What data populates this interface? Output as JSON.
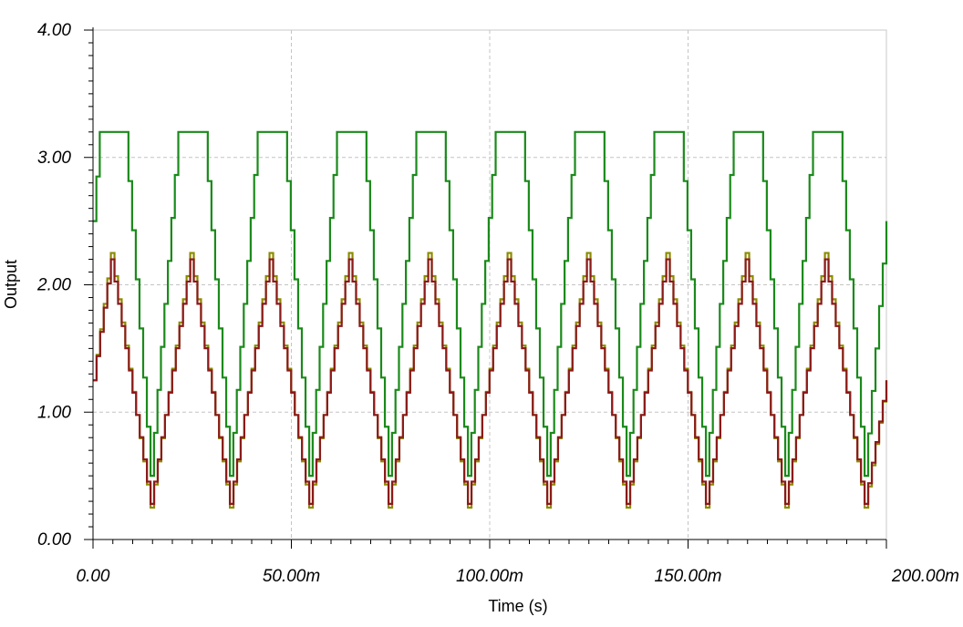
{
  "chart_data": {
    "type": "line",
    "title": "",
    "xlabel": "Time (s)",
    "ylabel": "Output",
    "xlim": [
      0,
      0.2
    ],
    "ylim": [
      0,
      4
    ],
    "grid": true,
    "x_ticks": [
      {
        "value": 0,
        "label": "0.00"
      },
      {
        "value": 0.05,
        "label": "50.00m"
      },
      {
        "value": 0.1,
        "label": "100.00m"
      },
      {
        "value": 0.15,
        "label": "150.00m"
      },
      {
        "value": 0.2,
        "label": "200.00m"
      }
    ],
    "y_ticks": [
      {
        "value": 0,
        "label": "0.00"
      },
      {
        "value": 1,
        "label": "1.00"
      },
      {
        "value": 2,
        "label": "2.00"
      },
      {
        "value": 3,
        "label": "3.00"
      },
      {
        "value": 4,
        "label": "4.00"
      }
    ],
    "series": [
      {
        "color": "#1a8a1a",
        "points": [
          [
            0,
            2.5
          ],
          [
            0.0017,
            3.2
          ],
          [
            0.008,
            3.2
          ],
          [
            0.0145,
            0.5
          ],
          [
            0.0215,
            3.2
          ],
          [
            0.028,
            3.2
          ],
          [
            0.0345,
            0.5
          ],
          [
            0.0415,
            3.2
          ],
          [
            0.048,
            3.2
          ],
          [
            0.0545,
            0.5
          ],
          [
            0.0615,
            3.2
          ],
          [
            0.068,
            3.2
          ],
          [
            0.0745,
            0.5
          ],
          [
            0.0815,
            3.2
          ],
          [
            0.088,
            3.2
          ],
          [
            0.0945,
            0.5
          ],
          [
            0.1015,
            3.2
          ],
          [
            0.108,
            3.2
          ],
          [
            0.1145,
            0.5
          ],
          [
            0.1215,
            3.2
          ],
          [
            0.128,
            3.2
          ],
          [
            0.1345,
            0.5
          ],
          [
            0.1415,
            3.2
          ],
          [
            0.148,
            3.2
          ],
          [
            0.1545,
            0.5
          ],
          [
            0.1615,
            3.2
          ],
          [
            0.168,
            3.2
          ],
          [
            0.1745,
            0.5
          ],
          [
            0.1815,
            3.2
          ],
          [
            0.188,
            3.2
          ],
          [
            0.1945,
            0.5
          ],
          [
            0.2,
            2.5
          ]
        ]
      },
      {
        "color": "#8b8b00",
        "points": [
          [
            0,
            1.25
          ],
          [
            0.0045,
            2.25
          ],
          [
            0.0145,
            0.25
          ],
          [
            0.0245,
            2.25
          ],
          [
            0.0345,
            0.25
          ],
          [
            0.0445,
            2.25
          ],
          [
            0.0545,
            0.25
          ],
          [
            0.0645,
            2.25
          ],
          [
            0.0745,
            0.25
          ],
          [
            0.0845,
            2.25
          ],
          [
            0.0945,
            0.25
          ],
          [
            0.1045,
            2.25
          ],
          [
            0.1145,
            0.25
          ],
          [
            0.1245,
            2.25
          ],
          [
            0.1345,
            0.25
          ],
          [
            0.1445,
            2.25
          ],
          [
            0.1545,
            0.25
          ],
          [
            0.1645,
            2.25
          ],
          [
            0.1745,
            0.25
          ],
          [
            0.1845,
            2.25
          ],
          [
            0.1945,
            0.25
          ],
          [
            0.2,
            1.25
          ]
        ]
      },
      {
        "color": "#8b1a1a",
        "points": [
          [
            0,
            1.25
          ],
          [
            0.0045,
            2.2
          ],
          [
            0.0145,
            0.28
          ],
          [
            0.0245,
            2.2
          ],
          [
            0.0345,
            0.28
          ],
          [
            0.0445,
            2.2
          ],
          [
            0.0545,
            0.28
          ],
          [
            0.0645,
            2.2
          ],
          [
            0.0745,
            0.28
          ],
          [
            0.0845,
            2.2
          ],
          [
            0.0945,
            0.28
          ],
          [
            0.1045,
            2.2
          ],
          [
            0.1145,
            0.28
          ],
          [
            0.1245,
            2.2
          ],
          [
            0.1345,
            0.28
          ],
          [
            0.1445,
            2.2
          ],
          [
            0.1545,
            0.28
          ],
          [
            0.1645,
            2.2
          ],
          [
            0.1745,
            0.28
          ],
          [
            0.1845,
            2.2
          ],
          [
            0.1945,
            0.28
          ],
          [
            0.2,
            1.25
          ]
        ]
      }
    ]
  }
}
